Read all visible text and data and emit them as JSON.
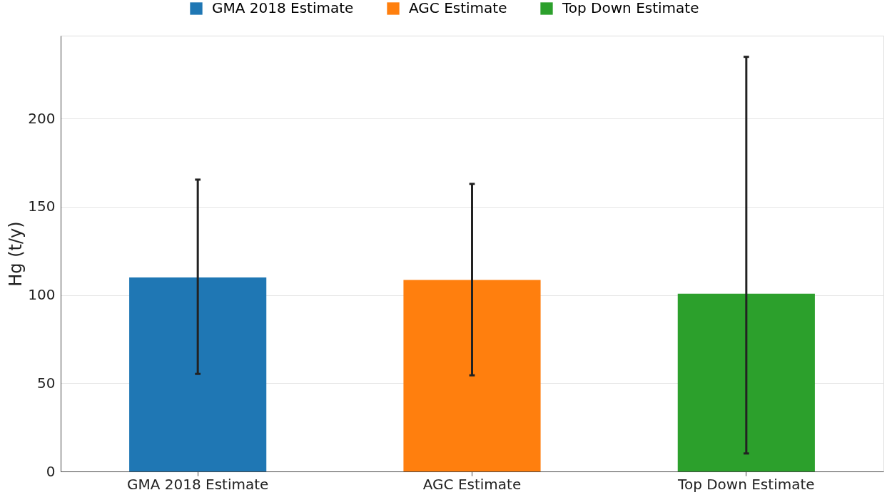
{
  "chart_data": {
    "type": "bar",
    "ylabel": "Hg (t/y)",
    "categories": [
      "GMA 2018 Estimate",
      "AGC Estimate",
      "Top Down Estimate"
    ],
    "series": [
      {
        "name": "GMA 2018 Estimate",
        "color": "#1f77b4",
        "values": [
          110,
          null,
          null
        ],
        "errors": [
          [
            55.3,
            165.4
          ],
          null,
          null
        ]
      },
      {
        "name": "AGC Estimate",
        "color": "#ff7f0e",
        "values": [
          null,
          108.5,
          null
        ],
        "errors": [
          null,
          [
            54.5,
            163
          ],
          null
        ]
      },
      {
        "name": "Top Down Estimate",
        "color": "#2ca02c",
        "values": [
          null,
          null,
          100.8
        ],
        "errors": [
          null,
          null,
          [
            10.2,
            235
          ]
        ]
      }
    ],
    "ylim": [
      0,
      247
    ],
    "yticks": [
      0,
      50,
      100,
      150,
      200
    ],
    "grid": "y",
    "legend": "top"
  }
}
